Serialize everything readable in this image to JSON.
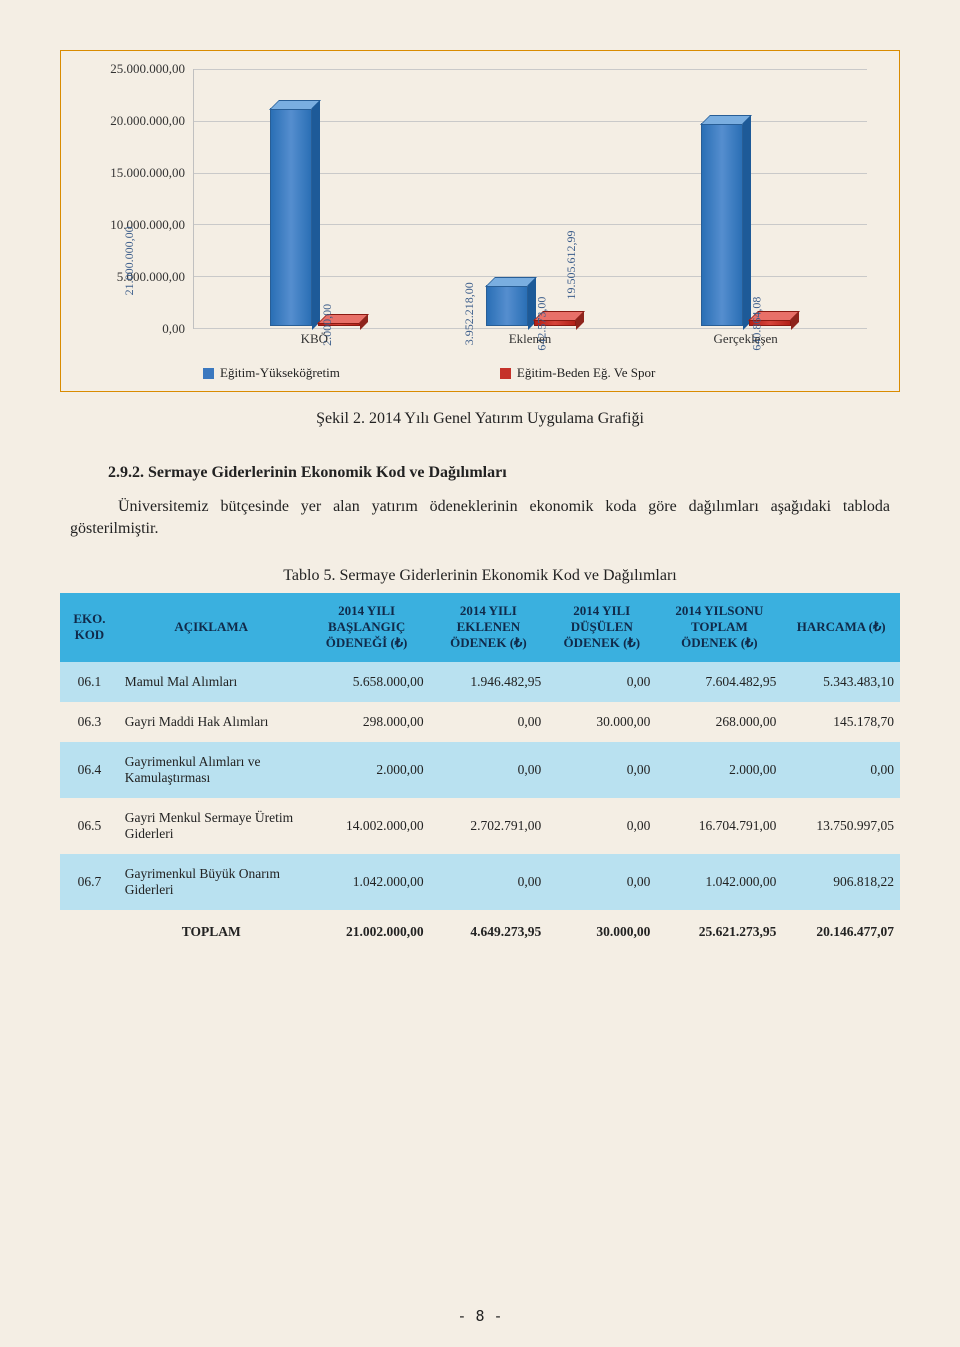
{
  "chart": {
    "type": "bar",
    "ylim": [
      0,
      25000000
    ],
    "ytick_step": 5000000,
    "y_labels": [
      "0,00",
      "5.000.000,00",
      "10.000.000,00",
      "15.000.000,00",
      "20.000.000,00",
      "25.000.000,00"
    ],
    "categories": [
      "KBÖ",
      "Eklenen",
      "Gerçekleşen"
    ],
    "series": [
      {
        "name": "Eğitim-Yükseköğretim",
        "color": "#3b78bf",
        "values": [
          21000000,
          3952218,
          19505612.99
        ],
        "value_labels": [
          "21.000.000,00",
          "3.952.218,00",
          "19.505.612,99"
        ]
      },
      {
        "name": "Eğitim-Beden Eğ. Ve Spor",
        "color": "#c5322a",
        "values": [
          2000,
          642573,
          640864.08
        ],
        "value_labels": [
          "2.000,00",
          "642.573,00",
          "640.864,08"
        ]
      }
    ],
    "border_color": "#d98b00",
    "grid_color": "#c9c9c9",
    "background_color": "#f4eee4"
  },
  "caption_chart": "Şekil 2. 2014 Yılı Genel Yatırım Uygulama Grafiği",
  "section_heading": "2.9.2. Sermaye Giderlerinin Ekonomik Kod ve Dağılımları",
  "body_text": "Üniversitemiz bütçesinde yer alan yatırım ödeneklerinin ekonomik koda göre dağılımları aşağıdaki tabloda gösterilmiştir.",
  "table_caption": "Tablo 5. Sermaye Giderlerinin Ekonomik Kod ve Dağılımları",
  "table": {
    "header_bg": "#3ab0df",
    "stripe_bg": "#b9e1f0",
    "columns": [
      "EKO. KOD",
      "AÇIKLAMA",
      "2014 YILI BAŞLANGIÇ ÖDENEĞİ (₺)",
      "2014 YILI EKLENEN ÖDENEK (₺)",
      "2014 YILI DÜŞÜLEN ÖDENEK (₺)",
      "2014 YILSONU TOPLAM ÖDENEK (₺)",
      "HARCAMA (₺)"
    ],
    "rows": [
      {
        "code": "06.1",
        "desc": "Mamul Mal Alımları",
        "c1": "5.658.000,00",
        "c2": "1.946.482,95",
        "c3": "0,00",
        "c4": "7.604.482,95",
        "c5": "5.343.483,10",
        "striped": true
      },
      {
        "code": "06.3",
        "desc": "Gayri Maddi Hak Alımları",
        "c1": "298.000,00",
        "c2": "0,00",
        "c3": "30.000,00",
        "c4": "268.000,00",
        "c5": "145.178,70",
        "striped": false
      },
      {
        "code": "06.4",
        "desc": "Gayrimenkul Alımları ve Kamulaştırması",
        "c1": "2.000,00",
        "c2": "0,00",
        "c3": "0,00",
        "c4": "2.000,00",
        "c5": "0,00",
        "striped": true
      },
      {
        "code": "06.5",
        "desc": "Gayri Menkul Sermaye Üretim Giderleri",
        "c1": "14.002.000,00",
        "c2": "2.702.791,00",
        "c3": "0,00",
        "c4": "16.704.791,00",
        "c5": "13.750.997,05",
        "striped": false
      },
      {
        "code": "06.7",
        "desc": "Gayrimenkul Büyük Onarım Giderleri",
        "c1": "1.042.000,00",
        "c2": "0,00",
        "c3": "0,00",
        "c4": "1.042.000,00",
        "c5": "906.818,22",
        "striped": true
      }
    ],
    "totals": {
      "label": "TOPLAM",
      "c1": "21.002.000,00",
      "c2": "4.649.273,95",
      "c3": "30.000,00",
      "c4": "25.621.273,95",
      "c5": "20.146.477,07"
    },
    "col_widths": [
      "7%",
      "22%",
      "15%",
      "14%",
      "13%",
      "15%",
      "14%"
    ]
  },
  "page_number": "- 8 -"
}
